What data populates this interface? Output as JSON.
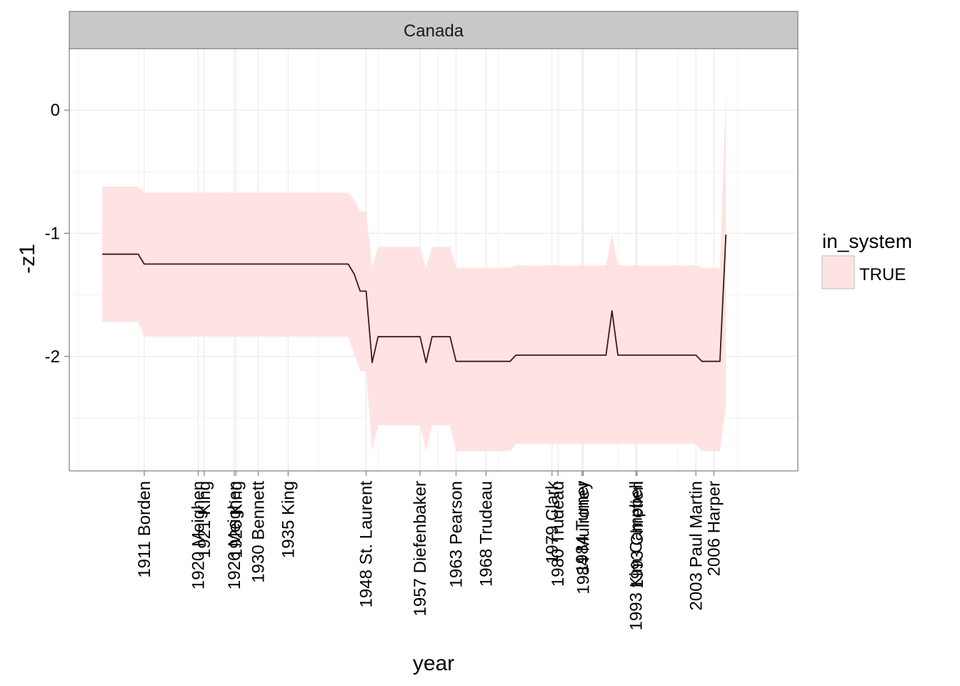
{
  "chart_data": {
    "type": "line",
    "panel": "Canada",
    "xlabel": "year",
    "ylabel": "-z1",
    "xlim": [
      1898.5,
      2020
    ],
    "ylim": [
      -2.93,
      0.5
    ],
    "y_ticks": [
      0,
      -1,
      -2
    ],
    "y_tick_labels": [
      "0",
      "-1",
      "-2"
    ],
    "x_minor_grid_years": [
      1900,
      1910,
      1920,
      1930,
      1940,
      1950,
      1960,
      1970,
      1980,
      1990,
      2000,
      2010
    ],
    "x_ticks": [
      {
        "year": 1911,
        "label": "1911 Borden"
      },
      {
        "year": 1920,
        "label": "1920 Meighen"
      },
      {
        "year": 1921,
        "label": "1921 King"
      },
      {
        "year": 1926,
        "label": "1926 Meighen"
      },
      {
        "year": 1926.3,
        "label": "1926 King"
      },
      {
        "year": 1930,
        "label": "1930 Bennett"
      },
      {
        "year": 1935,
        "label": "1935 King"
      },
      {
        "year": 1948,
        "label": "1948 St. Laurent"
      },
      {
        "year": 1957,
        "label": "1957 Diefenbaker"
      },
      {
        "year": 1963,
        "label": "1963 Pearson"
      },
      {
        "year": 1968,
        "label": "1968 Trudeau"
      },
      {
        "year": 1979,
        "label": "1979 Clark"
      },
      {
        "year": 1980,
        "label": "1980 Trudeau"
      },
      {
        "year": 1984,
        "label": "1984 Turner"
      },
      {
        "year": 1984.2,
        "label": "1984 Mulroney"
      },
      {
        "year": 1993,
        "label": "1993 Kim Campbell"
      },
      {
        "year": 1993.2,
        "label": "1993 Chretien"
      },
      {
        "year": 2003,
        "label": "2003 Paul Martin"
      },
      {
        "year": 2006,
        "label": "2006 Harper"
      }
    ],
    "legend": {
      "title": "in_system",
      "entries": [
        "TRUE"
      ],
      "position": "right"
    },
    "colors": {
      "ribbon": "#ffe3e3",
      "line": "#3a1a1a",
      "strip": "#c8c8c8",
      "grid": "#ebebeb",
      "border": "#7f7f7f"
    },
    "series": [
      {
        "x": [
          1904,
          1910,
          1911,
          1935,
          1945,
          1946,
          1947,
          1948,
          1949,
          1950,
          1957,
          1958,
          1959,
          1962,
          1963,
          1967,
          1968,
          1972,
          1973,
          1988,
          1989,
          1990,
          2003,
          2004,
          2007,
          2008
        ],
        "y": [
          -1.17,
          -1.17,
          -1.25,
          -1.25,
          -1.25,
          -1.33,
          -1.47,
          -1.47,
          -2.05,
          -1.84,
          -1.84,
          -2.05,
          -1.84,
          -1.84,
          -2.04,
          -2.04,
          -2.04,
          -2.04,
          -1.99,
          -1.99,
          -1.63,
          -1.99,
          -1.99,
          -2.04,
          -2.04,
          -1.01
        ],
        "lower": [
          -1.72,
          -1.72,
          -1.84,
          -1.84,
          -1.84,
          -1.98,
          -2.12,
          -2.12,
          -2.77,
          -2.56,
          -2.56,
          -2.77,
          -2.56,
          -2.56,
          -2.77,
          -2.77,
          -2.77,
          -2.77,
          -2.71,
          -2.71,
          -2.71,
          -2.71,
          -2.71,
          -2.77,
          -2.77,
          -2.4
        ],
        "upper": [
          -0.62,
          -0.62,
          -0.67,
          -0.67,
          -0.67,
          -0.72,
          -0.82,
          -0.82,
          -1.28,
          -1.11,
          -1.11,
          -1.28,
          -1.11,
          -1.11,
          -1.28,
          -1.28,
          -1.28,
          -1.28,
          -1.26,
          -1.26,
          -1.01,
          -1.26,
          -1.26,
          -1.28,
          -1.28,
          0.16
        ]
      }
    ]
  }
}
